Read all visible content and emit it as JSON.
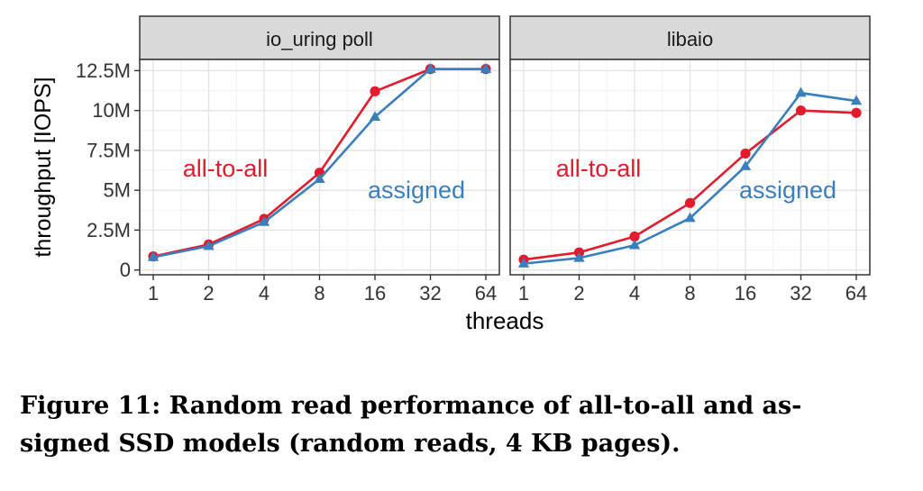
{
  "chart_data": {
    "type": "line",
    "ylabel": "throughput [IOPS]",
    "xlabel": "threads",
    "x_ticks": [
      "1",
      "2",
      "4",
      "8",
      "16",
      "32",
      "64"
    ],
    "y_ticks": [
      {
        "value": 0,
        "label": "0"
      },
      {
        "value": 2.5,
        "label": "2.5M"
      },
      {
        "value": 5,
        "label": "5M"
      },
      {
        "value": 7.5,
        "label": "7.5M"
      },
      {
        "value": 10,
        "label": "10M"
      },
      {
        "value": 12.5,
        "label": "12.5M"
      }
    ],
    "ylim": [
      -0.3,
      13.2
    ],
    "y_unit": "M IOPS",
    "grid": true,
    "colors": {
      "all_to_all": "#e41a2d",
      "assigned": "#3a7fbd"
    },
    "panels": [
      {
        "title": "io_uring poll",
        "series": [
          {
            "name": "all-to-all",
            "marker": "circle",
            "values": [
              0.85,
              1.6,
              3.2,
              6.1,
              11.2,
              12.6,
              12.6
            ]
          },
          {
            "name": "assigned",
            "marker": "triangle",
            "values": [
              0.8,
              1.5,
              3.0,
              5.7,
              9.6,
              12.6,
              12.6
            ]
          }
        ],
        "annotations": [
          {
            "text": "all-to-all",
            "series": "all-to-all"
          },
          {
            "text": "assigned",
            "series": "assigned"
          }
        ]
      },
      {
        "title": "libaio",
        "series": [
          {
            "name": "all-to-all",
            "marker": "circle",
            "values": [
              0.65,
              1.1,
              2.1,
              4.2,
              7.3,
              10.0,
              9.85
            ]
          },
          {
            "name": "assigned",
            "marker": "triangle",
            "values": [
              0.4,
              0.75,
              1.55,
              3.25,
              6.5,
              11.1,
              10.6
            ]
          }
        ],
        "annotations": [
          {
            "text": "all-to-all",
            "series": "all-to-all"
          },
          {
            "text": "assigned",
            "series": "assigned"
          }
        ]
      }
    ]
  },
  "caption": {
    "line1": "Figure 11: Random read performance of all-to-all and as-",
    "line2": "signed SSD models (random reads, 4 KB pages)."
  }
}
